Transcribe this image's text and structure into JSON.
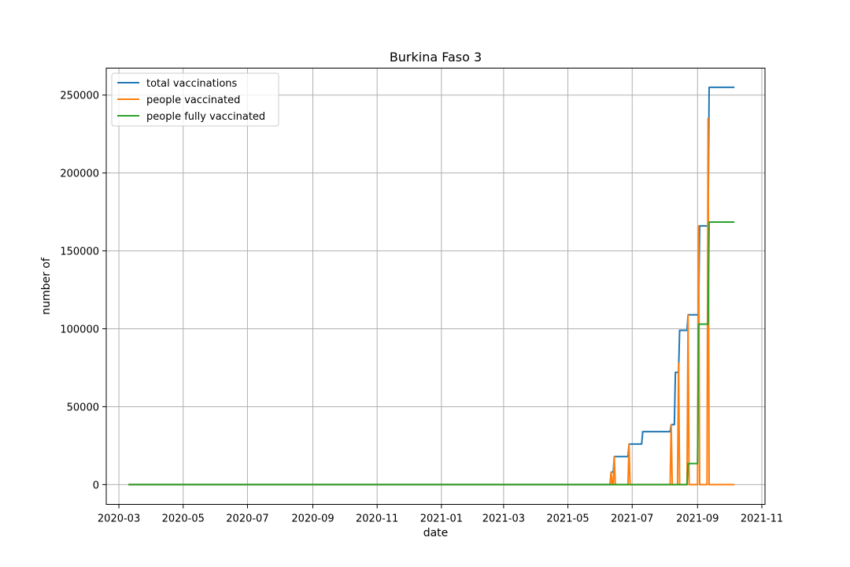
{
  "chart_data": {
    "type": "line",
    "title": "Burkina Faso 3",
    "xlabel": "date",
    "ylabel": "number of",
    "xlim": [
      "2020-02-18",
      "2021-11-04"
    ],
    "ylim": [
      -12700,
      267300
    ],
    "x_ticks": [
      "2020-03",
      "2020-05",
      "2020-07",
      "2020-09",
      "2020-11",
      "2021-01",
      "2021-03",
      "2021-05",
      "2021-07",
      "2021-09",
      "2021-11"
    ],
    "y_ticks": [
      0,
      50000,
      100000,
      150000,
      200000,
      250000
    ],
    "grid": true,
    "legend": "top-left",
    "series": [
      {
        "name": "total vaccinations",
        "color": "#1f77b4",
        "points": [
          [
            "2020-03-10",
            0
          ],
          [
            "2021-06-10",
            0
          ],
          [
            "2021-06-11",
            8000
          ],
          [
            "2021-06-13",
            8000
          ],
          [
            "2021-06-14",
            18000
          ],
          [
            "2021-06-27",
            18000
          ],
          [
            "2021-06-28",
            26000
          ],
          [
            "2021-07-10",
            26000
          ],
          [
            "2021-07-11",
            34000
          ],
          [
            "2021-08-06",
            34000
          ],
          [
            "2021-08-07",
            38500
          ],
          [
            "2021-08-10",
            38500
          ],
          [
            "2021-08-11",
            72000
          ],
          [
            "2021-08-14",
            72000
          ],
          [
            "2021-08-15",
            99000
          ],
          [
            "2021-08-22",
            99000
          ],
          [
            "2021-08-23",
            109000
          ],
          [
            "2021-09-02",
            109000
          ],
          [
            "2021-09-03",
            166000
          ],
          [
            "2021-09-11",
            166000
          ],
          [
            "2021-09-12",
            255000
          ],
          [
            "2021-10-06",
            255000
          ]
        ]
      },
      {
        "name": "people vaccinated",
        "color": "#ff7f0e",
        "points": [
          [
            "2020-03-10",
            0
          ],
          [
            "2021-06-10",
            0
          ],
          [
            "2021-06-11",
            8000
          ],
          [
            "2021-06-12",
            0
          ],
          [
            "2021-06-13",
            0
          ],
          [
            "2021-06-14",
            18000
          ],
          [
            "2021-06-15",
            0
          ],
          [
            "2021-06-27",
            0
          ],
          [
            "2021-06-28",
            26000
          ],
          [
            "2021-06-29",
            0
          ],
          [
            "2021-08-06",
            0
          ],
          [
            "2021-08-07",
            38500
          ],
          [
            "2021-08-08",
            0
          ],
          [
            "2021-08-13",
            0
          ],
          [
            "2021-08-14",
            78000
          ],
          [
            "2021-08-15",
            0
          ],
          [
            "2021-08-22",
            0
          ],
          [
            "2021-08-23",
            109000
          ],
          [
            "2021-08-24",
            0
          ],
          [
            "2021-09-01",
            0
          ],
          [
            "2021-09-02",
            166000
          ],
          [
            "2021-09-03",
            0
          ],
          [
            "2021-09-10",
            0
          ],
          [
            "2021-09-11",
            235000
          ],
          [
            "2021-09-12",
            0
          ],
          [
            "2021-10-06",
            0
          ]
        ]
      },
      {
        "name": "people fully vaccinated",
        "color": "#2ca02c",
        "points": [
          [
            "2020-03-10",
            0
          ],
          [
            "2021-08-22",
            0
          ],
          [
            "2021-08-23",
            13500
          ],
          [
            "2021-09-01",
            13500
          ],
          [
            "2021-09-02",
            103000
          ],
          [
            "2021-09-11",
            103000
          ],
          [
            "2021-09-12",
            168500
          ],
          [
            "2021-10-06",
            168500
          ]
        ]
      }
    ]
  }
}
